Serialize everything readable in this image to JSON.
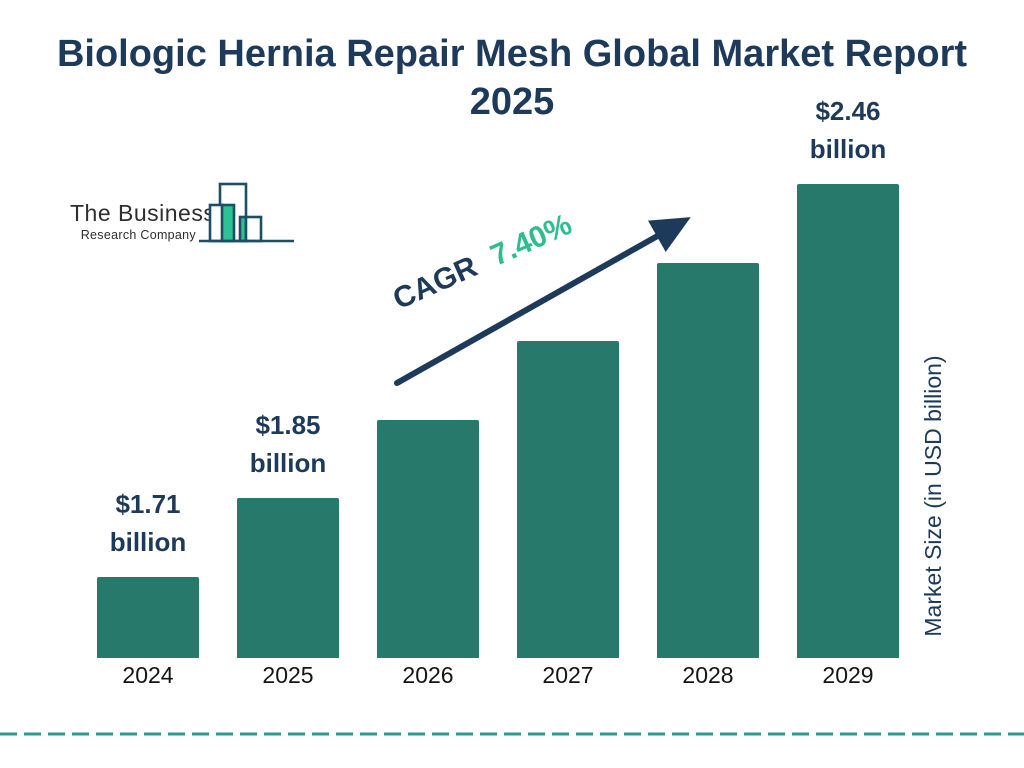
{
  "page": {
    "title": "Biologic Hernia Repair Mesh Global Market Report 2025"
  },
  "logo": {
    "company_line1": "The Business",
    "company_line2": "Research Company",
    "icon": "bar-chart-skyline-icon",
    "outline_color": "#1d4e63",
    "fill_color": "#2cc294"
  },
  "chart_data": {
    "type": "bar",
    "title": "Biologic Hernia Repair Mesh Global Market Report 2025",
    "ylabel": "Market Size (in USD billion)",
    "xlabel": "",
    "categories": [
      "2024",
      "2025",
      "2026",
      "2027",
      "2028",
      "2029"
    ],
    "values": [
      1.71,
      1.85,
      null,
      null,
      null,
      2.46
    ],
    "bar_labels": [
      "$1.71 billion",
      "$1.85 billion",
      null,
      null,
      null,
      "$2.46 billion"
    ],
    "annotation": {
      "label": "CAGR",
      "value": "7.40%"
    },
    "legend": "none",
    "grid": "off",
    "colors": {
      "bar": "#26796b",
      "navy_text": "#1e3a5a",
      "accent_green": "#2ebd8e",
      "divider_teal": "#2b9a8f",
      "year_text": "#141414"
    }
  }
}
